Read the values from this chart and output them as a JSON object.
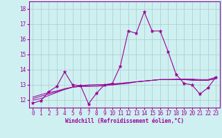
{
  "xlabel": "Windchill (Refroidissement éolien,°C)",
  "bg_color": "#cff0f0",
  "grid_color": "#aacccc",
  "line_color": "#990099",
  "xlim": [
    -0.5,
    23.5
  ],
  "ylim": [
    11.5,
    18.5
  ],
  "yticks": [
    12,
    13,
    14,
    15,
    16,
    17,
    18
  ],
  "xticks": [
    0,
    1,
    2,
    3,
    4,
    5,
    6,
    7,
    8,
    9,
    10,
    11,
    12,
    13,
    14,
    15,
    16,
    17,
    18,
    19,
    20,
    21,
    22,
    23
  ],
  "line1_x": [
    0,
    1,
    2,
    3,
    4,
    5,
    6,
    7,
    8,
    9,
    10,
    11,
    12,
    13,
    14,
    15,
    16,
    17,
    18,
    19,
    20,
    21,
    22,
    23
  ],
  "line1_y": [
    11.8,
    11.95,
    12.55,
    12.9,
    13.85,
    13.0,
    12.95,
    11.75,
    12.45,
    13.0,
    13.1,
    14.25,
    16.55,
    16.4,
    17.8,
    16.55,
    16.55,
    15.2,
    13.7,
    13.1,
    13.0,
    12.4,
    12.8,
    13.5
  ],
  "line2_x": [
    0,
    1,
    2,
    3,
    4,
    5,
    6,
    7,
    8,
    9,
    10,
    11,
    12,
    13,
    14,
    15,
    16,
    17,
    18,
    19,
    20,
    21,
    22,
    23
  ],
  "line2_y": [
    12.0,
    12.1,
    12.3,
    12.5,
    12.7,
    12.85,
    12.9,
    12.9,
    12.9,
    12.95,
    13.0,
    13.05,
    13.1,
    13.2,
    13.25,
    13.3,
    13.35,
    13.35,
    13.35,
    13.35,
    13.3,
    13.3,
    13.3,
    13.4
  ],
  "line3_x": [
    0,
    1,
    2,
    3,
    4,
    5,
    6,
    7,
    8,
    9,
    10,
    11,
    12,
    13,
    14,
    15,
    16,
    17,
    18,
    19,
    20,
    21,
    22,
    23
  ],
  "line3_y": [
    12.1,
    12.25,
    12.4,
    12.55,
    12.7,
    12.85,
    12.95,
    13.0,
    13.0,
    13.0,
    13.05,
    13.1,
    13.15,
    13.2,
    13.25,
    13.3,
    13.35,
    13.35,
    13.35,
    13.35,
    13.35,
    13.3,
    13.3,
    13.45
  ],
  "line4_x": [
    0,
    1,
    2,
    3,
    4,
    5,
    6,
    7,
    8,
    9,
    10,
    11,
    12,
    13,
    14,
    15,
    16,
    17,
    18,
    19,
    20,
    21,
    22,
    23
  ],
  "line4_y": [
    12.2,
    12.35,
    12.5,
    12.6,
    12.75,
    12.85,
    12.9,
    12.95,
    13.0,
    13.02,
    13.05,
    13.1,
    13.15,
    13.2,
    13.25,
    13.3,
    13.35,
    13.35,
    13.37,
    13.38,
    13.38,
    13.35,
    13.35,
    13.5
  ],
  "label_fontsize": 5.5,
  "tick_fontsize": 5.5,
  "xlabel_fontsize": 5.5
}
